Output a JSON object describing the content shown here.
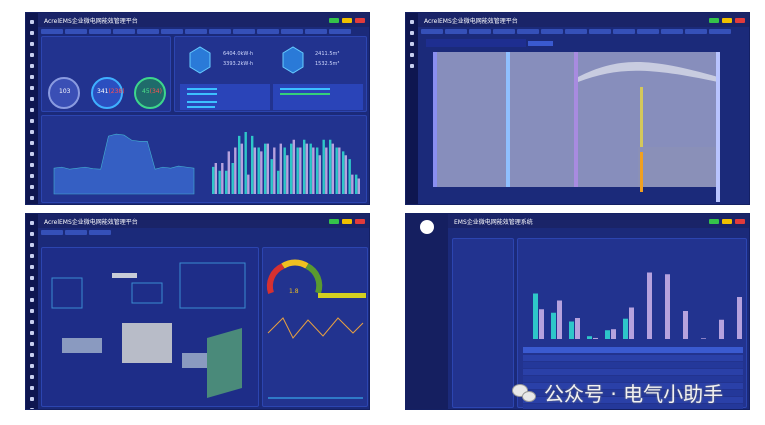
{
  "panels": {
    "overview": {
      "title": "AcrelEMS企业微电网能效管理平台",
      "stats": [
        {
          "value": "103"
        },
        {
          "value": "341",
          "extra": "(238)"
        },
        {
          "value": "45",
          "extra": "(34)"
        }
      ],
      "power": {
        "today": "6404.0kW·h",
        "yesterday": "3393.2kW·h"
      },
      "water": {
        "today": "2411.5m³",
        "yesterday": "1532.5m³"
      },
      "area_series": [
        250,
        260,
        240,
        250,
        260,
        245,
        240,
        560,
        580,
        570,
        520,
        510,
        510,
        240,
        260,
        250,
        270,
        260,
        250
      ],
      "bar_a": [
        7,
        6,
        6,
        8,
        15,
        16,
        15,
        12,
        13,
        9,
        6,
        12,
        13,
        12,
        14,
        13,
        12,
        14,
        14,
        12,
        11,
        9,
        5
      ],
      "bar_b": [
        8,
        8,
        11,
        12,
        13,
        5,
        12,
        11,
        13,
        12,
        13,
        10,
        14,
        12,
        13,
        12,
        10,
        12,
        13,
        12,
        10,
        5,
        4
      ]
    },
    "sankey": {
      "title": "AcrelEMS企业微电网能效管理平台"
    },
    "hvac": {
      "title": "AcrelEMS企业微电网能效管理平台",
      "gauge_value": "1.8"
    },
    "report": {
      "title": "EMS企业微电网能效管理系统",
      "bars_a": [
        130,
        75,
        50,
        8,
        25,
        58,
        0,
        0,
        0,
        0,
        0,
        0
      ],
      "bars_b": [
        85,
        110,
        60,
        3,
        28,
        90,
        190,
        185,
        80,
        2,
        55,
        120
      ]
    }
  },
  "watermark": "公众号 · 电气小助手",
  "colors": {
    "bg": "#1b2a7a",
    "teal": "#2ec7c9",
    "lilac": "#b6a2de"
  }
}
